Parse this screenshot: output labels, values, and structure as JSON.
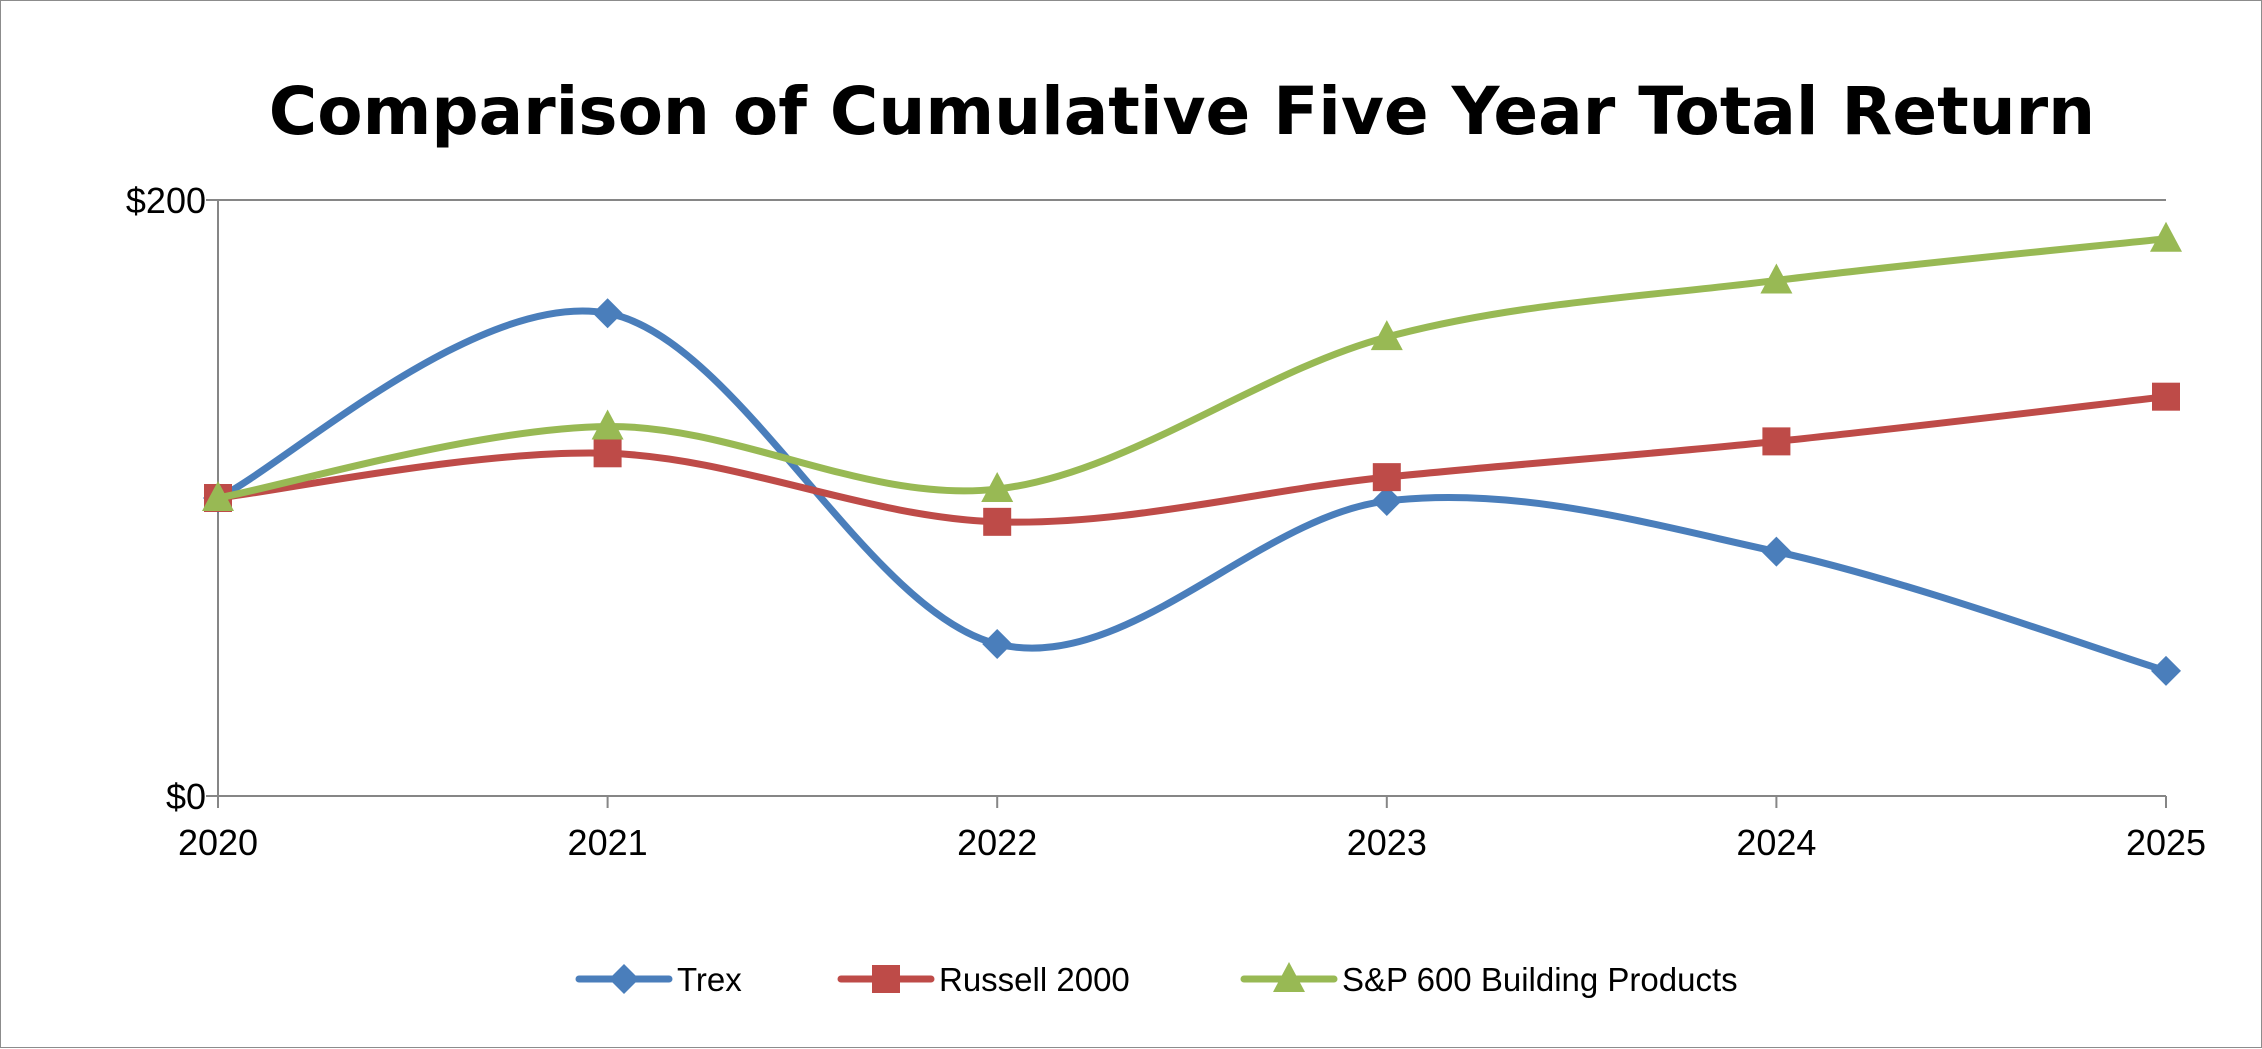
{
  "chart_data": {
    "type": "line",
    "title": "Comparison of Cumulative Five Year Total Return",
    "xlabel": "",
    "ylabel": "",
    "x": [
      "2020",
      "2021",
      "2022",
      "2023",
      "2024",
      "2025"
    ],
    "ylim": [
      0,
      200
    ],
    "y_tick_labels": [
      {
        "value": 0,
        "label": "$0"
      },
      {
        "value": 200,
        "label": "$200"
      }
    ],
    "grid": "horizontal line at $200 only",
    "legend": "bottom-center",
    "smooth": true,
    "series": [
      {
        "name": "Trex",
        "color": "#4A7EBB",
        "marker": "diamond",
        "values": [
          100,
          162,
          51,
          99,
          82,
          42
        ]
      },
      {
        "name": "Russell 2000",
        "color": "#BE4B48",
        "marker": "square",
        "values": [
          100,
          115,
          92,
          107,
          119,
          134
        ]
      },
      {
        "name": "S&P 600 Building Products",
        "color": "#98B954",
        "marker": "triangle",
        "values": [
          100,
          124,
          103,
          154,
          173,
          187
        ]
      }
    ]
  }
}
